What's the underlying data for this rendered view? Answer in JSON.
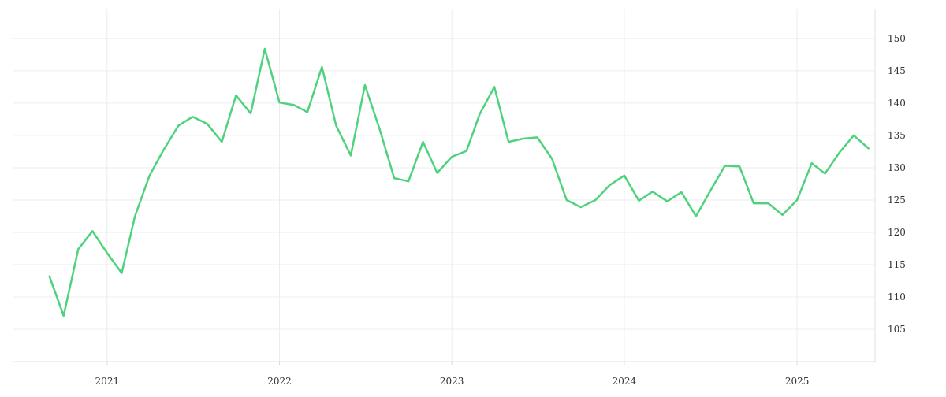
{
  "chart_data": {
    "type": "line",
    "title": "",
    "xlabel": "",
    "ylabel": "",
    "x_tick_labels": [
      "2021",
      "2022",
      "2023",
      "2024",
      "2025"
    ],
    "y_tick_labels": [
      "105",
      "110",
      "115",
      "120",
      "125",
      "130",
      "135",
      "140",
      "145",
      "150"
    ],
    "y_ticks": [
      105,
      110,
      115,
      120,
      125,
      130,
      135,
      140,
      145,
      150
    ],
    "ylim": [
      100,
      154.5
    ],
    "xlim": [
      "2020-06-15",
      "2025-06-15"
    ],
    "grid": true,
    "y_axis_position": "right",
    "color": "#4fd27d",
    "series": [
      {
        "x": [
          "2020-09-01",
          "2020-10-01",
          "2020-11-01",
          "2020-12-01",
          "2021-01-01",
          "2021-02-01",
          "2021-03-01",
          "2021-04-01",
          "2021-05-01",
          "2021-06-01",
          "2021-07-01",
          "2021-08-01",
          "2021-09-01",
          "2021-10-01",
          "2021-11-01",
          "2021-12-01",
          "2022-01-01",
          "2022-02-01",
          "2022-03-01",
          "2022-04-01",
          "2022-05-01",
          "2022-06-01",
          "2022-07-01",
          "2022-08-01",
          "2022-09-01",
          "2022-10-01",
          "2022-11-01",
          "2022-12-01",
          "2023-01-01",
          "2023-02-01",
          "2023-03-01",
          "2023-04-01",
          "2023-05-01",
          "2023-06-01",
          "2023-07-01",
          "2023-08-01",
          "2023-09-01",
          "2023-10-01",
          "2023-11-01",
          "2023-12-01",
          "2024-01-01",
          "2024-02-01",
          "2024-03-01",
          "2024-04-01",
          "2024-05-01",
          "2024-06-01",
          "2024-07-01",
          "2024-08-01",
          "2024-09-01",
          "2024-10-01",
          "2024-11-01",
          "2024-12-01",
          "2025-01-01",
          "2025-02-01",
          "2025-03-01",
          "2025-04-01",
          "2025-05-01",
          "2025-06-01"
        ],
        "values": [
          113.2,
          107.1,
          117.4,
          120.2,
          116.8,
          113.7,
          122.5,
          128.8,
          132.8,
          136.5,
          137.9,
          136.8,
          134.0,
          141.2,
          138.4,
          148.4,
          140.1,
          139.7,
          138.6,
          145.6,
          136.5,
          131.9,
          142.8,
          136.0,
          128.4,
          127.9,
          134.0,
          129.2,
          131.7,
          132.6,
          138.3,
          142.5,
          134.0,
          134.5,
          134.7,
          131.4,
          125.0,
          123.9,
          125.0,
          127.3,
          128.8,
          124.9,
          126.3,
          124.8,
          126.2,
          122.5,
          126.4,
          130.3,
          130.2,
          124.5,
          124.5,
          122.7,
          125.0,
          130.7,
          129.1,
          132.4,
          135.0,
          133.0
        ]
      }
    ]
  }
}
